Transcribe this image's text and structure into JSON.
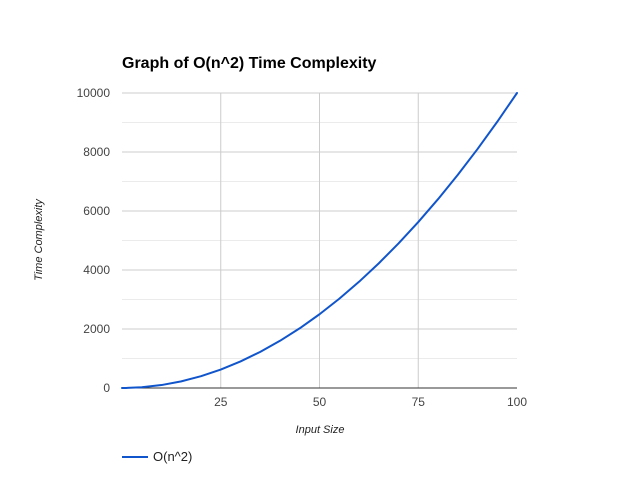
{
  "chart_data": {
    "type": "line",
    "title": "Graph of O(n^2) Time Complexity",
    "xlabel": "Input Size",
    "ylabel": "Time Complexity",
    "xlim": [
      0,
      100
    ],
    "ylim": [
      0,
      10000
    ],
    "x_ticks": [
      "25",
      "50",
      "75",
      "100"
    ],
    "y_ticks": [
      "0",
      "2000",
      "4000",
      "6000",
      "8000",
      "10000"
    ],
    "grid": true,
    "legend_position": "bottom-left",
    "series": [
      {
        "name": "O(n^2)",
        "color": "#1155cc",
        "x": [
          1,
          5,
          10,
          15,
          20,
          25,
          30,
          35,
          40,
          45,
          50,
          55,
          60,
          65,
          70,
          75,
          80,
          85,
          90,
          95,
          100
        ],
        "y": [
          1,
          25,
          100,
          225,
          400,
          625,
          900,
          1225,
          1600,
          2025,
          2500,
          3025,
          3600,
          4225,
          4900,
          5625,
          6400,
          7225,
          8100,
          9025,
          10000
        ]
      }
    ]
  }
}
